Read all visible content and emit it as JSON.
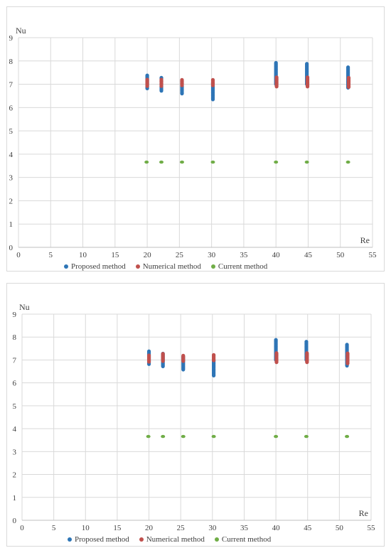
{
  "colors": {
    "proposed": "#2e75b6",
    "numerical": "#c0504d",
    "current": "#70ad47",
    "grid": "#d9d9d9",
    "axis": "#bfbfbf"
  },
  "chart_data": [
    {
      "type": "scatter",
      "title": "",
      "xlabel": "Re",
      "ylabel": "Nu",
      "xlim": [
        0,
        55
      ],
      "ylim": [
        0,
        9
      ],
      "x_ticks": [
        "0",
        "5",
        "10",
        "15",
        "20",
        "25",
        "30",
        "35",
        "40",
        "45",
        "50",
        "55"
      ],
      "y_ticks": [
        "0",
        "1",
        "2",
        "3",
        "4",
        "5",
        "6",
        "7",
        "8",
        "9"
      ],
      "grid": true,
      "legend": "bottom",
      "series": [
        {
          "name": "Proposed method",
          "color_key": "proposed",
          "points": [
            {
              "x": 20.0,
              "y_min": 6.82,
              "y_max": 7.38
            },
            {
              "x": 22.2,
              "y_min": 6.72,
              "y_max": 7.3
            },
            {
              "x": 25.4,
              "y_min": 6.6,
              "y_max": 7.15
            },
            {
              "x": 30.2,
              "y_min": 6.35,
              "y_max": 7.1
            },
            {
              "x": 40.0,
              "y_min": 7.0,
              "y_max": 7.95
            },
            {
              "x": 44.8,
              "y_min": 7.0,
              "y_max": 7.88
            },
            {
              "x": 51.2,
              "y_min": 6.85,
              "y_max": 7.75
            }
          ]
        },
        {
          "name": "Numerical method",
          "color_key": "numerical",
          "points": [
            {
              "x": 20.0,
              "y_min": 6.92,
              "y_max": 7.2
            },
            {
              "x": 22.2,
              "y_min": 6.92,
              "y_max": 7.22
            },
            {
              "x": 25.4,
              "y_min": 6.95,
              "y_max": 7.22
            },
            {
              "x": 30.2,
              "y_min": 6.95,
              "y_max": 7.22
            },
            {
              "x": 40.1,
              "y_min": 6.9,
              "y_max": 7.3
            },
            {
              "x": 44.9,
              "y_min": 6.9,
              "y_max": 7.3
            },
            {
              "x": 51.3,
              "y_min": 6.88,
              "y_max": 7.3
            }
          ]
        },
        {
          "name": "Current method",
          "color_key": "current",
          "points": [
            {
              "x": 19.9,
              "y": 3.66
            },
            {
              "x": 22.2,
              "y": 3.66
            },
            {
              "x": 25.4,
              "y": 3.66
            },
            {
              "x": 30.2,
              "y": 3.66
            },
            {
              "x": 40.0,
              "y": 3.66
            },
            {
              "x": 44.8,
              "y": 3.66
            },
            {
              "x": 51.2,
              "y": 3.66
            }
          ]
        }
      ]
    },
    {
      "type": "scatter",
      "title": "",
      "xlabel": "Re",
      "ylabel": "Nu",
      "xlim": [
        0,
        55
      ],
      "ylim": [
        0,
        9
      ],
      "x_ticks": [
        "0",
        "5",
        "10",
        "15",
        "20",
        "25",
        "30",
        "35",
        "40",
        "45",
        "50",
        "55"
      ],
      "y_ticks": [
        "0",
        "1",
        "2",
        "3",
        "4",
        "5",
        "6",
        "7",
        "8",
        "9"
      ],
      "grid": true,
      "legend": "bottom",
      "series": [
        {
          "name": "Proposed method",
          "color_key": "proposed",
          "points": [
            {
              "x": 20.0,
              "y_min": 6.82,
              "y_max": 7.38
            },
            {
              "x": 22.2,
              "y_min": 6.72,
              "y_max": 7.3
            },
            {
              "x": 25.4,
              "y_min": 6.58,
              "y_max": 7.15
            },
            {
              "x": 30.2,
              "y_min": 6.32,
              "y_max": 7.0
            },
            {
              "x": 40.0,
              "y_min": 7.0,
              "y_max": 7.88
            },
            {
              "x": 44.8,
              "y_min": 7.0,
              "y_max": 7.8
            },
            {
              "x": 51.2,
              "y_min": 6.75,
              "y_max": 7.68
            }
          ]
        },
        {
          "name": "Numerical method",
          "color_key": "numerical",
          "points": [
            {
              "x": 20.0,
              "y_min": 6.92,
              "y_max": 7.2
            },
            {
              "x": 22.2,
              "y_min": 6.95,
              "y_max": 7.28
            },
            {
              "x": 25.4,
              "y_min": 6.95,
              "y_max": 7.22
            },
            {
              "x": 30.2,
              "y_min": 6.98,
              "y_max": 7.22
            },
            {
              "x": 40.1,
              "y_min": 6.9,
              "y_max": 7.3
            },
            {
              "x": 44.9,
              "y_min": 6.9,
              "y_max": 7.3
            },
            {
              "x": 51.3,
              "y_min": 6.85,
              "y_max": 7.3
            }
          ]
        },
        {
          "name": "Current method",
          "color_key": "current",
          "points": [
            {
              "x": 19.9,
              "y": 3.66
            },
            {
              "x": 22.2,
              "y": 3.66
            },
            {
              "x": 25.4,
              "y": 3.66
            },
            {
              "x": 30.2,
              "y": 3.66
            },
            {
              "x": 40.0,
              "y": 3.66
            },
            {
              "x": 44.8,
              "y": 3.66
            },
            {
              "x": 51.2,
              "y": 3.66
            }
          ]
        }
      ]
    }
  ]
}
